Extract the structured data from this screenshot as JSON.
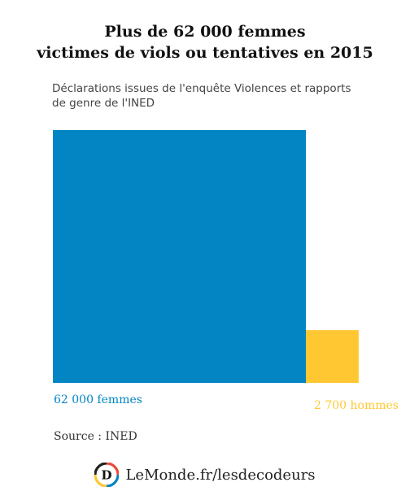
{
  "title": {
    "line1": "Plus de 62 000 femmes",
    "line2": "victimes de viols ou tentatives en 2015"
  },
  "subtitle": {
    "line1": "Déclarations issues de l'enquête Violences et rapports",
    "line2": "de genre de l'INED"
  },
  "chart_data": {
    "type": "area-square",
    "items": [
      {
        "label": "62 000 femmes",
        "value": 62000,
        "color": "#0385c3"
      },
      {
        "label": "2 700 hommes",
        "value": 2700,
        "color": "#ffc832"
      }
    ]
  },
  "source": "Source : INED",
  "footer": {
    "brand": "LeMonde.fr/lesdecodeurs",
    "logo_letter": "D"
  }
}
